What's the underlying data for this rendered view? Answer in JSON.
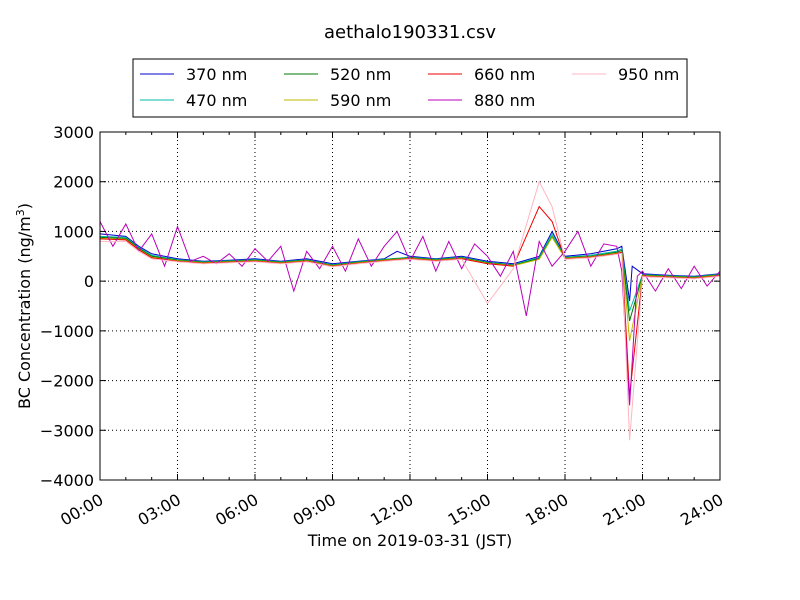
{
  "chart_data": {
    "type": "line",
    "title": "aethalo190331.csv",
    "xlabel": "Time on 2019-03-31 (JST)",
    "ylabel": "BC Concentration (ng/m",
    "ylabel_sup": "3",
    "ylabel_end": ")",
    "xlim": [
      0,
      24
    ],
    "ylim": [
      -4000,
      3000
    ],
    "grid": true,
    "legend_position": "top-center",
    "x_ticks": [
      0,
      3,
      6,
      9,
      12,
      15,
      18,
      21,
      24
    ],
    "x_tick_labels": [
      "00:00",
      "03:00",
      "06:00",
      "09:00",
      "12:00",
      "15:00",
      "18:00",
      "21:00",
      "24:00"
    ],
    "y_ticks": [
      3000,
      2000,
      1000,
      0,
      -1000,
      -2000,
      -3000,
      -4000
    ],
    "y_tick_labels": [
      "3000",
      "2000",
      "1000",
      "0",
      "−1000",
      "−2000",
      "−3000",
      "−4000"
    ],
    "series": [
      {
        "name": "370 nm",
        "color": "#0000cc",
        "x": [
          0,
          1,
          1.5,
          2,
          3,
          4,
          5,
          6,
          7,
          8,
          9,
          10,
          11,
          11.5,
          12,
          13,
          14,
          15,
          16,
          17,
          17.5,
          18,
          19,
          20,
          20.2,
          20.5,
          20.6,
          21,
          22,
          23,
          24
        ],
        "y": [
          950,
          900,
          700,
          550,
          450,
          400,
          420,
          450,
          400,
          450,
          350,
          400,
          450,
          600,
          500,
          450,
          500,
          400,
          350,
          500,
          1000,
          500,
          550,
          650,
          700,
          -400,
          300,
          150,
          120,
          100,
          150
        ]
      },
      {
        "name": "470 nm",
        "color": "#00bbaa",
        "x": [
          0,
          1,
          1.5,
          2,
          3,
          4,
          5,
          6,
          7,
          8,
          9,
          10,
          11,
          12,
          13,
          14,
          15,
          16,
          17,
          17.5,
          18,
          19,
          20,
          20.2,
          20.5,
          21,
          22,
          23,
          24
        ],
        "y": [
          900,
          880,
          680,
          520,
          430,
          390,
          410,
          430,
          390,
          430,
          330,
          390,
          440,
          480,
          440,
          480,
          380,
          330,
          480,
          950,
          480,
          520,
          600,
          650,
          -600,
          130,
          110,
          90,
          140
        ]
      },
      {
        "name": "520 nm",
        "color": "#007700",
        "x": [
          0,
          1,
          1.5,
          2,
          3,
          4,
          5,
          6,
          7,
          8,
          9,
          10,
          11,
          12,
          13,
          14,
          15,
          16,
          17,
          17.5,
          18,
          19,
          20,
          20.2,
          20.5,
          21,
          22,
          23,
          24
        ],
        "y": [
          880,
          860,
          660,
          500,
          420,
          380,
          400,
          420,
          380,
          420,
          320,
          380,
          430,
          470,
          430,
          470,
          370,
          320,
          460,
          900,
          470,
          500,
          580,
          620,
          -800,
          120,
          100,
          80,
          130
        ]
      },
      {
        "name": "590 nm",
        "color": "#bbbb00",
        "x": [
          0,
          1,
          1.5,
          2,
          3,
          4,
          5,
          6,
          7,
          8,
          9,
          10,
          11,
          12,
          13,
          14,
          15,
          16,
          17,
          17.5,
          18,
          19,
          20,
          20.2,
          20.5,
          21,
          22,
          23,
          24
        ],
        "y": [
          860,
          840,
          640,
          480,
          410,
          370,
          390,
          410,
          370,
          410,
          310,
          370,
          420,
          460,
          420,
          460,
          360,
          310,
          440,
          880,
          460,
          490,
          560,
          600,
          -1200,
          110,
          90,
          70,
          120
        ]
      },
      {
        "name": "660 nm",
        "color": "#ee0000",
        "x": [
          0,
          1,
          1.5,
          2,
          3,
          4,
          5,
          6,
          7,
          8,
          9,
          10,
          11,
          12,
          13,
          14,
          15,
          16,
          17,
          17.5,
          18,
          19,
          20,
          20.2,
          20.5,
          21,
          22,
          23,
          24
        ],
        "y": [
          850,
          830,
          630,
          470,
          400,
          360,
          380,
          400,
          360,
          400,
          300,
          360,
          410,
          450,
          410,
          450,
          350,
          300,
          1500,
          1200,
          450,
          480,
          550,
          580,
          -2300,
          100,
          80,
          60,
          110
        ]
      },
      {
        "name": "880 nm",
        "color": "#bb00bb",
        "x": [
          0,
          0.5,
          1,
          1.5,
          2,
          2.5,
          3,
          3.5,
          4,
          4.5,
          5,
          5.5,
          6,
          6.5,
          7,
          7.5,
          8,
          8.5,
          9,
          9.5,
          10,
          10.5,
          11,
          11.5,
          12,
          12.5,
          13,
          13.5,
          14,
          14.5,
          15,
          15.5,
          16,
          16.5,
          17,
          17.5,
          18,
          18.5,
          19,
          19.5,
          20,
          20.2,
          20.5,
          20.8,
          21,
          21.5,
          22,
          22.5,
          23,
          23.5,
          24
        ],
        "y": [
          1200,
          700,
          1150,
          600,
          950,
          300,
          1100,
          400,
          500,
          350,
          550,
          300,
          650,
          400,
          700,
          -200,
          600,
          250,
          700,
          200,
          850,
          300,
          700,
          1000,
          400,
          900,
          200,
          800,
          250,
          750,
          500,
          100,
          600,
          -700,
          800,
          300,
          600,
          1000,
          300,
          750,
          700,
          200,
          -2500,
          100,
          200,
          -200,
          250,
          -150,
          300,
          -100,
          200
        ]
      },
      {
        "name": "950 nm",
        "color": "#ffb6c1",
        "x": [
          0,
          1,
          1.5,
          2,
          3,
          4,
          5,
          6,
          7,
          8,
          9,
          10,
          11,
          12,
          13,
          14,
          15,
          16,
          17,
          17.5,
          18,
          19,
          20,
          20.2,
          20.5,
          21,
          22,
          23,
          24
        ],
        "y": [
          800,
          800,
          600,
          450,
          390,
          350,
          370,
          390,
          350,
          390,
          290,
          350,
          400,
          440,
          400,
          440,
          -450,
          250,
          2000,
          1500,
          440,
          470,
          540,
          560,
          -3200,
          90,
          70,
          50,
          100
        ]
      }
    ]
  }
}
